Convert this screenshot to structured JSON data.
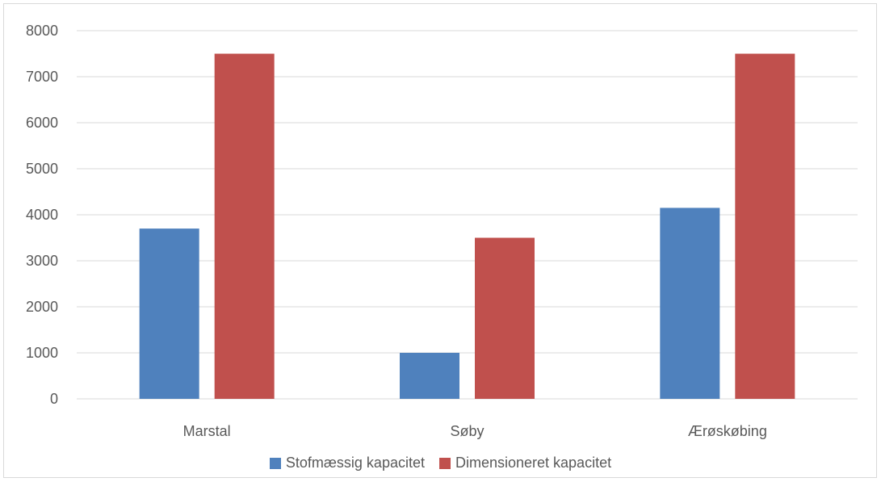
{
  "chart_data": {
    "type": "bar",
    "categories": [
      "Marstal",
      "Søby",
      "Ærøskøbing"
    ],
    "series": [
      {
        "name": "Stofmæssig kapacitet",
        "color": "#4f81bd",
        "values": [
          3700,
          1000,
          4150
        ]
      },
      {
        "name": "Dimensioneret kapacitet",
        "color": "#c0504d",
        "values": [
          7500,
          3500,
          7500
        ]
      }
    ],
    "ylim": [
      0,
      8000
    ],
    "yticks": [
      0,
      1000,
      2000,
      3000,
      4000,
      5000,
      6000,
      7000,
      8000
    ],
    "grid": true,
    "legend_position": "bottom"
  }
}
